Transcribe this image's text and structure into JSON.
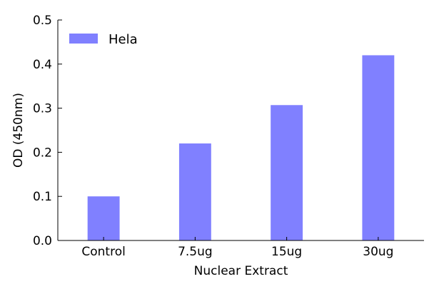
{
  "chart_data": {
    "type": "bar",
    "categories": [
      "Control",
      "7.5ug",
      "15ug",
      "30ug"
    ],
    "series": [
      {
        "name": "Hela",
        "values": [
          0.1,
          0.22,
          0.307,
          0.42
        ],
        "color": "#8080ff"
      }
    ],
    "xlabel": "Nuclear Extract",
    "ylabel": "OD (450nm)",
    "ylim": [
      0,
      0.5
    ],
    "yticks": [
      "0.0",
      "0.1",
      "0.2",
      "0.3",
      "0.4",
      "0.5"
    ],
    "grid": false,
    "legend_position": "top-left"
  }
}
